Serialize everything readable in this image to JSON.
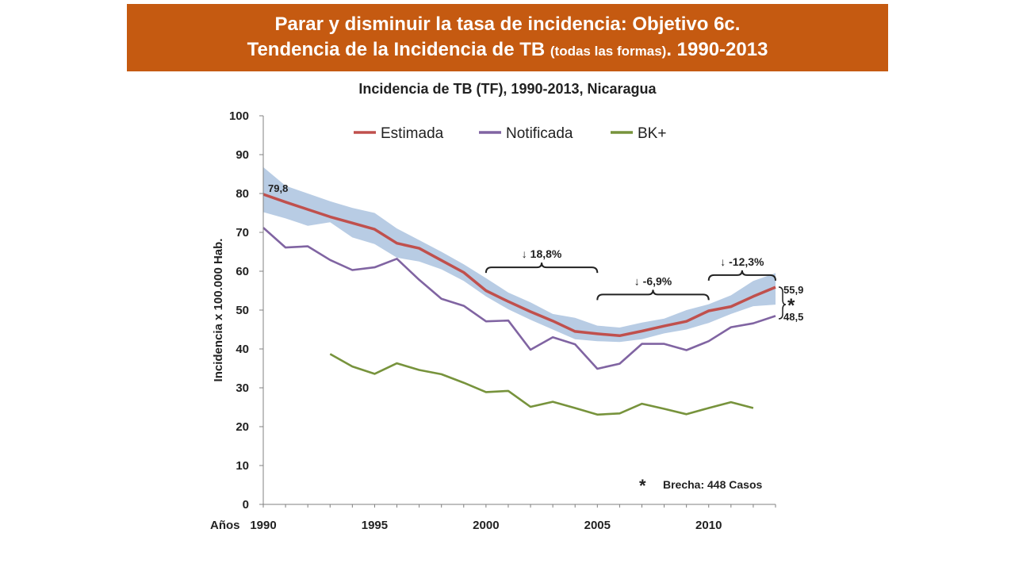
{
  "slide": {
    "title_line1": "Parar y disminuir la tasa de incidencia: Objetivo 6c.",
    "title_line2_a": "Tendencia de la Incidencia de TB ",
    "title_line2_b": "(todas las formas)",
    "title_line2_c": ". 1990-2013",
    "accent_color": "#c55a11"
  },
  "chart_data": {
    "type": "line",
    "title": "Incidencia de TB (TF), 1990-2013, Nicaragua",
    "xlabel_prefix": "Años",
    "ylabel": "Incidencia x 100.000 Hab.",
    "xlim": [
      1990,
      2013
    ],
    "ylim": [
      0,
      100
    ],
    "x_ticks": [
      1990,
      1995,
      2000,
      2005,
      2010
    ],
    "y_ticks": [
      0,
      10,
      20,
      30,
      40,
      50,
      60,
      70,
      80,
      90,
      100
    ],
    "grid": false,
    "legend_position": "top",
    "series": [
      {
        "name": "Estimada",
        "color": "#c0504d",
        "x": [
          1990,
          1991,
          1992,
          1993,
          1994,
          1995,
          1996,
          1997,
          1998,
          1999,
          2000,
          2001,
          2002,
          2003,
          2004,
          2005,
          2006,
          2007,
          2008,
          2009,
          2010,
          2011,
          2012,
          2013
        ],
        "values": [
          79.8,
          77.8,
          75.9,
          74.0,
          72.4,
          70.8,
          67.2,
          65.9,
          62.8,
          59.7,
          55.0,
          52.2,
          49.6,
          47.2,
          44.5,
          43.9,
          43.4,
          44.6,
          45.9,
          47.1,
          49.8,
          50.9,
          53.5,
          55.9
        ]
      },
      {
        "name": "Notificada",
        "color": "#8064a2",
        "x": [
          1990,
          1991,
          1992,
          1993,
          1994,
          1995,
          1996,
          1997,
          1998,
          1999,
          2000,
          2001,
          2002,
          2003,
          2004,
          2005,
          2006,
          2007,
          2008,
          2009,
          2010,
          2011,
          2012,
          2013
        ],
        "values": [
          71.2,
          66.1,
          66.4,
          62.9,
          60.3,
          61.0,
          63.2,
          57.8,
          52.9,
          51.1,
          47.1,
          47.3,
          39.8,
          43.0,
          41.2,
          34.9,
          36.2,
          41.3,
          41.3,
          39.7,
          42.0,
          45.6,
          46.6,
          48.5
        ]
      },
      {
        "name": "BK+",
        "color": "#77933c",
        "x": [
          1993,
          1994,
          1995,
          1996,
          1997,
          1998,
          1999,
          2000,
          2001,
          2002,
          2003,
          2004,
          2005,
          2006,
          2007,
          2008,
          2009,
          2010,
          2011,
          2012
        ],
        "values": [
          38.7,
          35.5,
          33.6,
          36.3,
          34.6,
          33.5,
          31.3,
          28.9,
          29.2,
          25.1,
          26.4,
          24.8,
          23.1,
          23.4,
          25.9,
          24.6,
          23.2,
          24.8,
          26.3,
          24.8
        ]
      }
    ],
    "uncertainty_band": {
      "color": "#b8cce4",
      "x": [
        1990,
        1991,
        1992,
        1993,
        1994,
        1995,
        1996,
        1997,
        1998,
        1999,
        2000,
        2001,
        2002,
        2003,
        2004,
        2005,
        2006,
        2007,
        2008,
        2009,
        2010,
        2011,
        2012,
        2013
      ],
      "upper": [
        86.8,
        82.0,
        80.0,
        78.0,
        76.3,
        75.0,
        71.0,
        68.0,
        65.0,
        61.8,
        58.2,
        54.5,
        52.0,
        49.0,
        48.0,
        46.0,
        45.5,
        46.8,
        47.8,
        50.0,
        51.5,
        53.8,
        57.5,
        59.5
      ],
      "lower": [
        75.2,
        73.6,
        71.7,
        72.6,
        68.7,
        67.0,
        63.5,
        62.5,
        60.5,
        57.5,
        53.5,
        50.2,
        47.5,
        45.0,
        42.5,
        42.0,
        41.8,
        42.5,
        44.0,
        45.0,
        46.7,
        49.0,
        51.0,
        51.4
      ]
    },
    "annotations": {
      "start_value": "79,8",
      "end_estimated": "55,9",
      "end_notified": "48,5",
      "gap_marker": "*",
      "gap_note_marker": "*",
      "gap_note": "Brecha: 448 Casos",
      "bracket_1": {
        "label": "↓ 18,8%",
        "x_from": 2000,
        "x_to": 2005,
        "y": 61
      },
      "bracket_2": {
        "label": "↓ -6,9%",
        "x_from": 2005,
        "x_to": 2010,
        "y": 54
      },
      "bracket_3": {
        "label": "↓ -12,3%",
        "x_from": 2010,
        "x_to": 2013,
        "y": 59
      }
    }
  }
}
